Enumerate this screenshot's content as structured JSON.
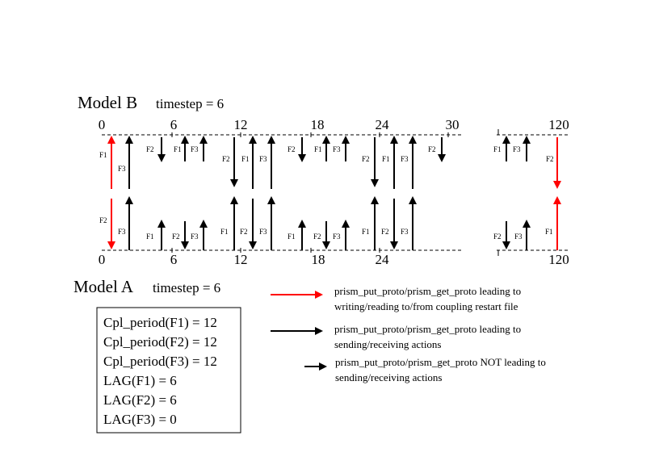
{
  "modelB": {
    "title": "Model B",
    "timestep_label": "timestep = 6"
  },
  "modelA": {
    "title": "Model A",
    "timestep_label": "timestep = 6"
  },
  "timeline_top_ticks": [
    "0",
    "6",
    "12",
    "18",
    "24",
    "30",
    "120"
  ],
  "timeline_bottom_ticks": [
    "0",
    "6",
    "12",
    "18",
    "24",
    "120"
  ],
  "field_labels": {
    "f1": "F1",
    "f2": "F2",
    "f3": "F3"
  },
  "legend": [
    {
      "line1": "prism_put_proto/prism_get_proto leading to",
      "line2": "writing/reading to/from coupling restart file",
      "color": "#ff0000"
    },
    {
      "line1": "prism_put_proto/prism_get_proto leading to",
      "line2": "sending/receiving actions",
      "color": "#000000"
    },
    {
      "line1": "prism_put_proto/prism_get_proto NOT leading to",
      "line2": "sending/receiving actions",
      "color": "#000000"
    }
  ],
  "params_box": [
    "Cpl_period(F1) = 12",
    "Cpl_period(F2) = 12",
    "Cpl_period(F3) = 12",
    "LAG(F1) = 6",
    "LAG(F2) = 6",
    "LAG(F3) = 0"
  ],
  "colors": {
    "restart": "#ff0000",
    "exchange": "#000000"
  }
}
